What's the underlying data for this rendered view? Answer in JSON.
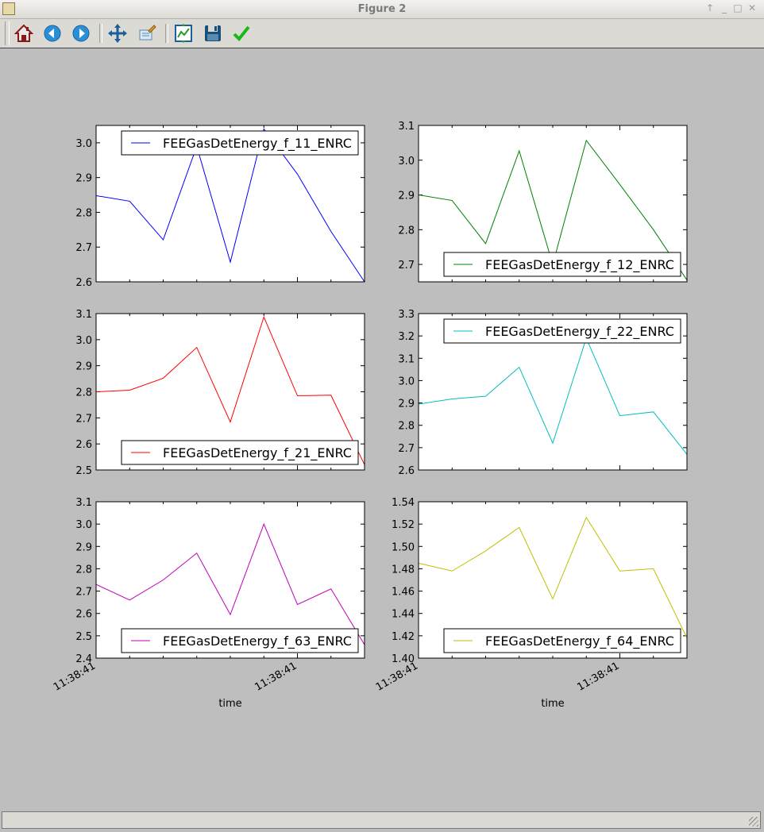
{
  "window": {
    "title": "Figure 2"
  },
  "toolbar": {
    "buttons": [
      {
        "name": "home-button",
        "icon": "home-icon"
      },
      {
        "name": "back-button",
        "icon": "arrow-left-icon"
      },
      {
        "name": "forward-button",
        "icon": "arrow-right-icon"
      },
      {
        "name": "pan-button",
        "icon": "move-icon"
      },
      {
        "name": "zoom-button",
        "icon": "zoom-rect-icon"
      },
      {
        "name": "subplots-button",
        "icon": "subplots-icon"
      },
      {
        "name": "save-button",
        "icon": "floppy-icon"
      },
      {
        "name": "edit-button",
        "icon": "checkmark-icon"
      }
    ]
  },
  "chart_data": [
    {
      "type": "line",
      "panel": "top-left",
      "series": [
        {
          "name": "FEEGasDetEnergy_f_11_ENRC",
          "color": "#0000ff",
          "values": [
            2.848,
            2.832,
            2.721,
            2.99,
            2.657,
            3.04,
            2.91,
            2.745,
            2.6
          ]
        }
      ],
      "ylim": [
        2.6,
        3.05
      ],
      "yticks": [
        "2.6",
        "2.7",
        "2.8",
        "2.9",
        "3.0"
      ],
      "legend_position": "upper right",
      "xticklabels": [],
      "xlabel": ""
    },
    {
      "type": "line",
      "panel": "top-right",
      "series": [
        {
          "name": "FEEGasDetEnergy_f_12_ENRC",
          "color": "#008000",
          "values": [
            2.9,
            2.884,
            2.76,
            3.027,
            2.7,
            3.057,
            2.93,
            2.8,
            2.655
          ]
        }
      ],
      "ylim": [
        2.65,
        3.1
      ],
      "yticks": [
        "2.7",
        "2.8",
        "2.9",
        "3.0",
        "3.1"
      ],
      "legend_position": "lower right",
      "xticklabels": [],
      "xlabel": ""
    },
    {
      "type": "line",
      "panel": "middle-left",
      "series": [
        {
          "name": "FEEGasDetEnergy_f_21_ENRC",
          "color": "#ff0000",
          "values": [
            2.8,
            2.806,
            2.852,
            2.97,
            2.684,
            3.087,
            2.785,
            2.787,
            2.52
          ]
        }
      ],
      "ylim": [
        2.5,
        3.1
      ],
      "yticks": [
        "2.5",
        "2.6",
        "2.7",
        "2.8",
        "2.9",
        "3.0",
        "3.1"
      ],
      "legend_position": "lower right",
      "xticklabels": [],
      "xlabel": ""
    },
    {
      "type": "line",
      "panel": "middle-right",
      "series": [
        {
          "name": "FEEGasDetEnergy_f_22_ENRC",
          "color": "#00bfbf",
          "values": [
            2.895,
            2.918,
            2.93,
            3.06,
            2.72,
            3.19,
            2.843,
            2.86,
            2.67
          ]
        }
      ],
      "ylim": [
        2.6,
        3.3
      ],
      "yticks": [
        "2.6",
        "2.7",
        "2.8",
        "2.9",
        "3.0",
        "3.1",
        "3.2",
        "3.3"
      ],
      "legend_position": "upper right",
      "xticklabels": [],
      "xlabel": ""
    },
    {
      "type": "line",
      "panel": "bottom-left",
      "series": [
        {
          "name": "FEEGasDetEnergy_f_63_ENRC",
          "color": "#bf00bf",
          "values": [
            2.73,
            2.66,
            2.75,
            2.87,
            2.595,
            3.0,
            2.64,
            2.71,
            2.46
          ]
        }
      ],
      "ylim": [
        2.4,
        3.1
      ],
      "yticks": [
        "2.4",
        "2.5",
        "2.6",
        "2.7",
        "2.8",
        "2.9",
        "3.0",
        "3.1"
      ],
      "legend_position": "lower right",
      "xticklabels": [
        "11:38:41",
        "11:38:41"
      ],
      "xlabel": "time"
    },
    {
      "type": "line",
      "panel": "bottom-right",
      "series": [
        {
          "name": "FEEGasDetEnergy_f_64_ENRC",
          "color": "#bfbf00",
          "values": [
            1.485,
            1.478,
            1.496,
            1.517,
            1.453,
            1.526,
            1.478,
            1.48,
            1.418
          ]
        }
      ],
      "ylim": [
        1.4,
        1.54
      ],
      "yticks": [
        "1.40",
        "1.42",
        "1.44",
        "1.46",
        "1.48",
        "1.50",
        "1.52",
        "1.54"
      ],
      "legend_position": "lower right",
      "xticklabels": [
        "11:38:41",
        "11:38:41"
      ],
      "xlabel": "time"
    }
  ]
}
